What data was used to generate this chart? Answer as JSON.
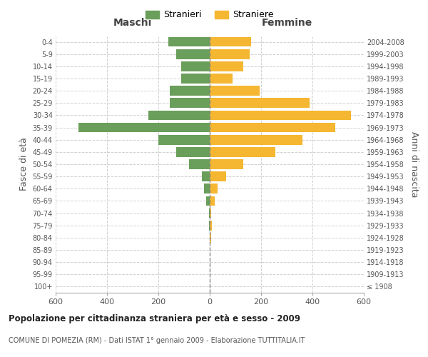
{
  "age_groups": [
    "100+",
    "95-99",
    "90-94",
    "85-89",
    "80-84",
    "75-79",
    "70-74",
    "65-69",
    "60-64",
    "55-59",
    "50-54",
    "45-49",
    "40-44",
    "35-39",
    "30-34",
    "25-29",
    "20-24",
    "15-19",
    "10-14",
    "5-9",
    "0-4"
  ],
  "birth_years": [
    "≤ 1908",
    "1909-1913",
    "1914-1918",
    "1919-1923",
    "1924-1928",
    "1929-1933",
    "1934-1938",
    "1939-1943",
    "1944-1948",
    "1949-1953",
    "1954-1958",
    "1959-1963",
    "1964-1968",
    "1969-1973",
    "1974-1978",
    "1979-1983",
    "1984-1988",
    "1989-1993",
    "1994-1998",
    "1999-2003",
    "2004-2008"
  ],
  "maschi": [
    0,
    0,
    0,
    0,
    0,
    3,
    2,
    15,
    22,
    30,
    80,
    130,
    200,
    510,
    240,
    155,
    155,
    110,
    110,
    130,
    160
  ],
  "femmine": [
    0,
    0,
    0,
    0,
    5,
    8,
    5,
    20,
    30,
    65,
    130,
    255,
    360,
    490,
    550,
    390,
    195,
    90,
    130,
    155,
    160
  ],
  "male_color": "#6a9e5b",
  "female_color": "#f5b731",
  "background_color": "#ffffff",
  "grid_color": "#cccccc",
  "title": "Popolazione per cittadinanza straniera per età e sesso - 2009",
  "subtitle": "COMUNE DI POMEZIA (RM) - Dati ISTAT 1° gennaio 2009 - Elaborazione TUTTITALIA.IT",
  "ylabel_left": "Fasce di età",
  "ylabel_right": "Anni di nascita",
  "xlabel_maschi": "Maschi",
  "xlabel_femmine": "Femmine",
  "legend_maschi": "Stranieri",
  "legend_femmine": "Straniere",
  "xlim": 600,
  "bar_height": 0.8
}
